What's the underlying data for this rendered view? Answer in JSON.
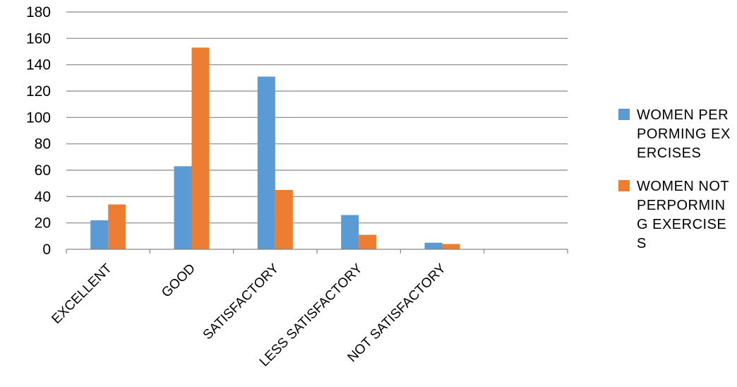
{
  "chart_data": {
    "type": "bar",
    "categories": [
      "EXCELLENT",
      "GOOD",
      "SATISFACTORY",
      "LESS SATISFACTORY",
      "NOT SATISFACTORY",
      ""
    ],
    "series": [
      {
        "name": "WOMEN PERPORMING EXERCISES",
        "color": "#5b9bd5",
        "values": [
          22,
          63,
          131,
          26,
          5,
          null
        ]
      },
      {
        "name": "WOMEN NOT PERPORMING EXERCISES",
        "color": "#ed7d31",
        "values": [
          34,
          153,
          45,
          11,
          4,
          null
        ]
      }
    ],
    "ylim": [
      0,
      180
    ],
    "yticks": [
      0,
      20,
      40,
      60,
      80,
      100,
      120,
      140,
      160,
      180
    ],
    "grid": true,
    "legend_position": "right",
    "title": "",
    "xlabel": "",
    "ylabel": ""
  }
}
